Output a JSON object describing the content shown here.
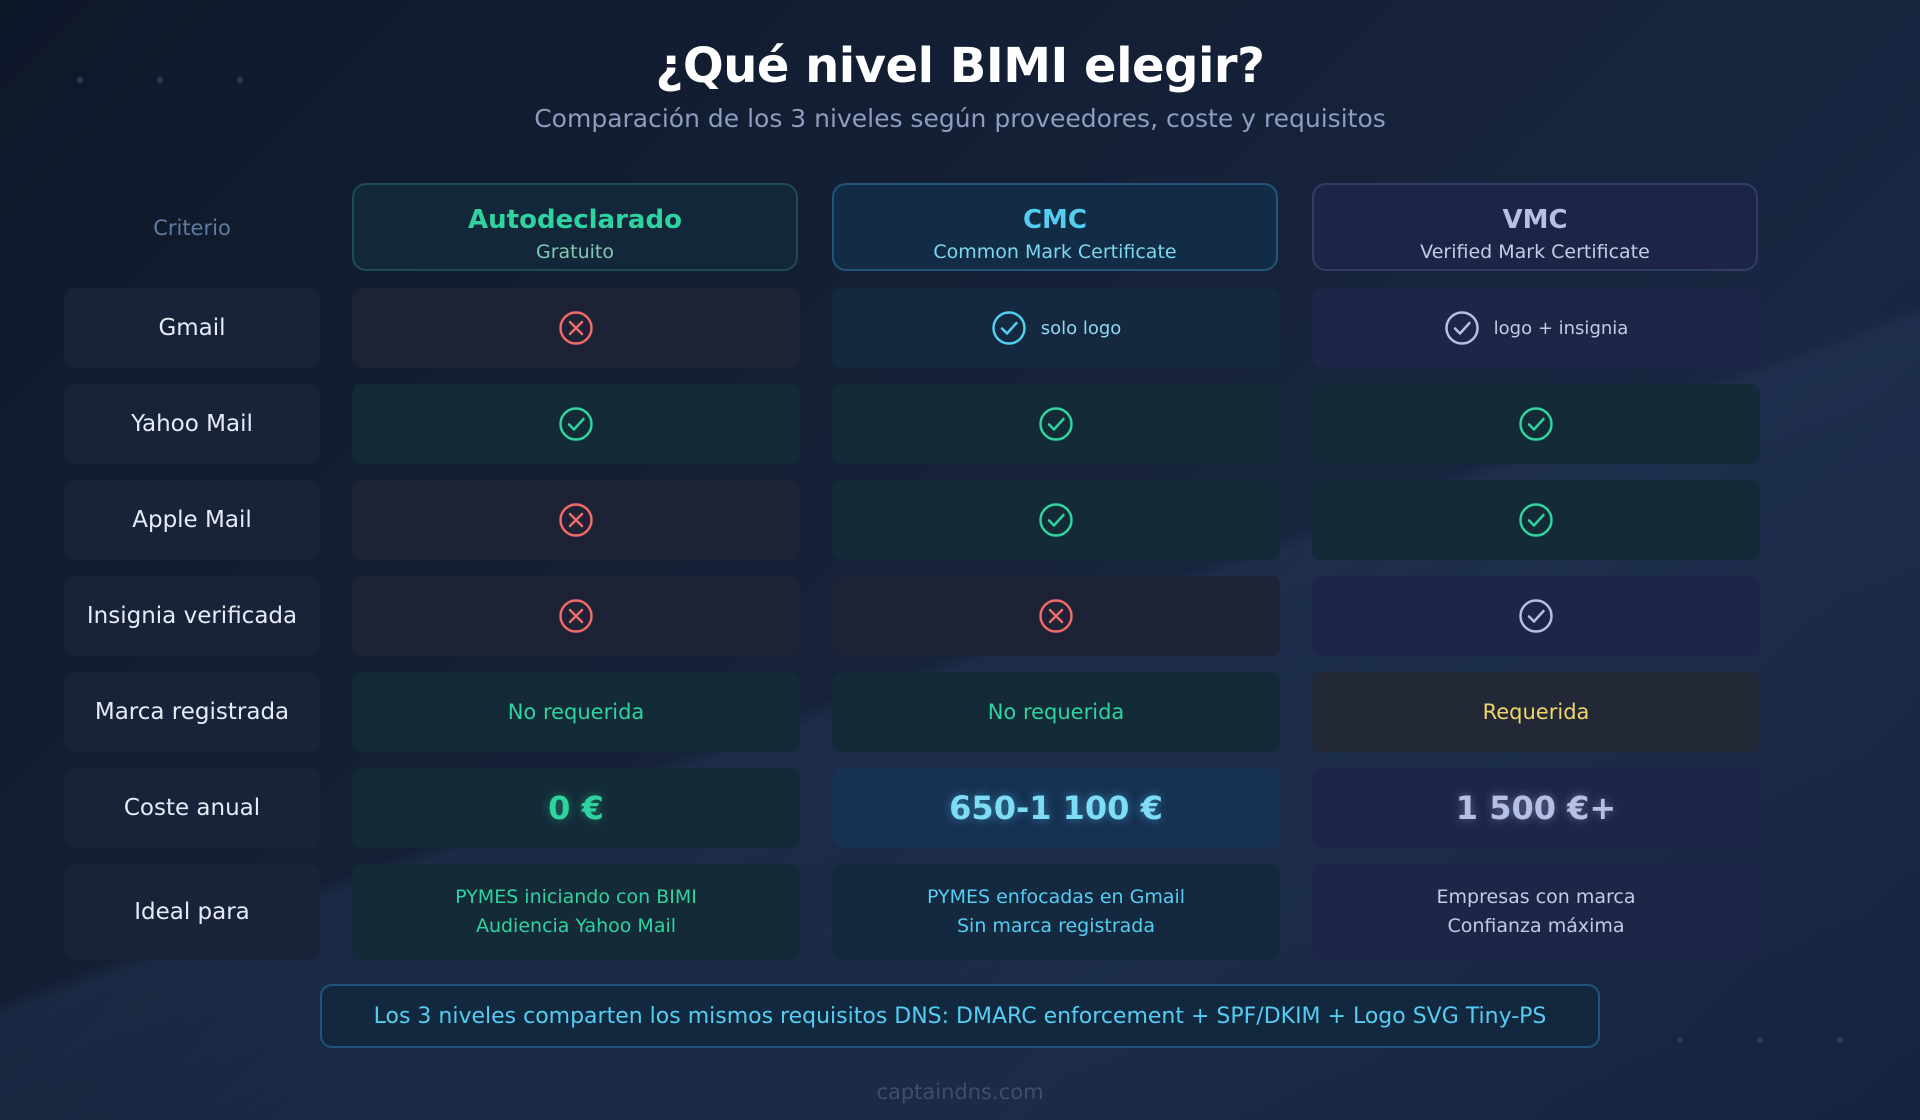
{
  "title": "¿Qué nivel BIMI elegir?",
  "subtitle": "Comparación de los 3 niveles según proveedores, coste y requisitos",
  "criterio_label": "Criterio",
  "columns": [
    {
      "name": "Autodeclarado",
      "sub": "Gratuito",
      "color": "#2fd3a0"
    },
    {
      "name": "CMC",
      "sub": "Common Mark Certificate",
      "color": "#55cdf2"
    },
    {
      "name": "VMC",
      "sub": "Verified Mark Certificate",
      "color": "#b5c0e6"
    }
  ],
  "rows": [
    {
      "label": "Gmail",
      "cells": [
        {
          "icon": "cross-icon"
        },
        {
          "icon": "check-icon",
          "text": "solo logo"
        },
        {
          "icon": "check-icon",
          "text": "logo + insignia"
        }
      ]
    },
    {
      "label": "Yahoo Mail",
      "cells": [
        {
          "icon": "check-icon"
        },
        {
          "icon": "check-icon"
        },
        {
          "icon": "check-icon"
        }
      ]
    },
    {
      "label": "Apple Mail",
      "cells": [
        {
          "icon": "cross-icon"
        },
        {
          "icon": "check-icon"
        },
        {
          "icon": "check-icon"
        }
      ]
    },
    {
      "label": "Insignia verificada",
      "cells": [
        {
          "icon": "cross-icon"
        },
        {
          "icon": "cross-icon"
        },
        {
          "icon": "check-icon"
        }
      ]
    },
    {
      "label": "Marca registrada",
      "cells": [
        {
          "text": "No requerida"
        },
        {
          "text": "No requerida"
        },
        {
          "text": "Requerida"
        }
      ]
    },
    {
      "label": "Coste anual",
      "cells": [
        {
          "text": "0 €"
        },
        {
          "text": "650-1 100 €"
        },
        {
          "text": "1 500 €+"
        }
      ]
    },
    {
      "label": "Ideal para",
      "cells": [
        {
          "line1": "PYMES iniciando con BIMI",
          "line2": "Audiencia Yahoo Mail"
        },
        {
          "line1": "PYMES enfocadas en Gmail",
          "line2": "Sin marca registrada"
        },
        {
          "line1": "Empresas con marca",
          "line2": "Confianza máxima"
        }
      ]
    }
  ],
  "banner": "Los 3 niveles comparten los mismos requisitos DNS: DMARC enforcement + SPF/DKIM + Logo SVG Tiny-PS",
  "footer": "captaindns.com",
  "colors": {
    "green": "#2fd3a0",
    "cyan": "#55cdf2",
    "lavender": "#b5c0e6",
    "red": "#f06a6a",
    "yellow": "#f2d56a"
  }
}
